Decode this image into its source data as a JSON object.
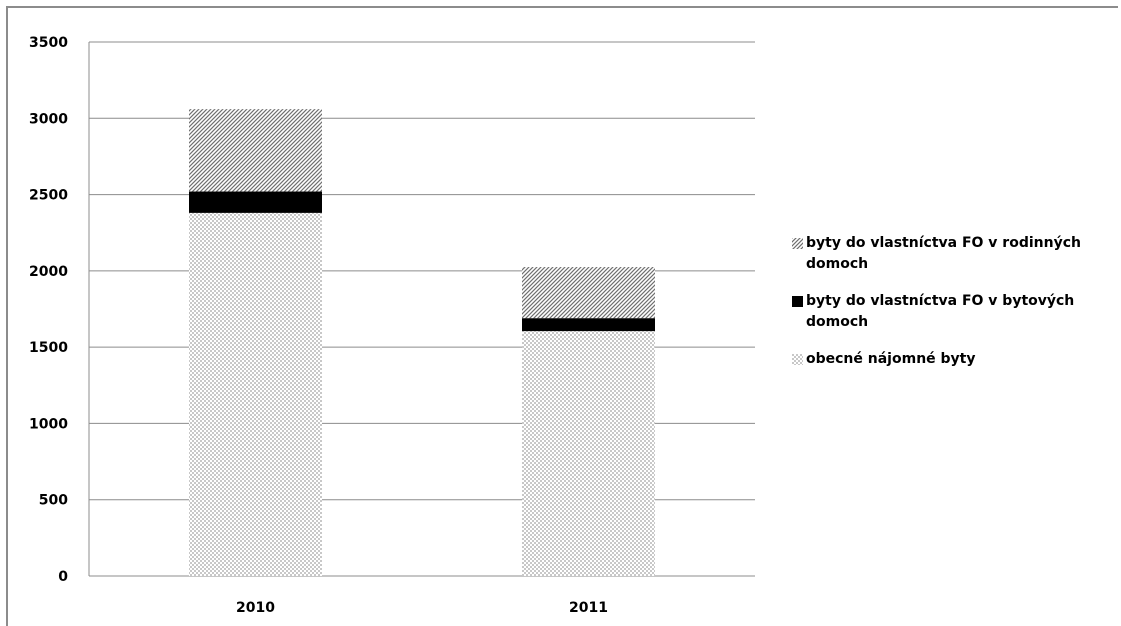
{
  "chart_data": {
    "type": "bar",
    "stacked": true,
    "categories": [
      "2010",
      "2011"
    ],
    "series": [
      {
        "name": "obecné nájomné byty",
        "values": [
          2380,
          1605
        ],
        "color": "#d9d9d9",
        "pattern": "dots"
      },
      {
        "name": "byty do vlastníctva FO v bytových domoch",
        "values": [
          140,
          85
        ],
        "color": "#000000",
        "pattern": "solid"
      },
      {
        "name": "byty do vlastníctva FO v rodinných domoch",
        "values": [
          540,
          335
        ],
        "color": "#7f7f7f",
        "pattern": "diagonal"
      }
    ],
    "ylim": [
      0,
      3500
    ],
    "yticks": [
      "0",
      "500",
      "1000",
      "1500",
      "2000",
      "2500",
      "3000",
      "3500"
    ],
    "grid": true,
    "legend_position": "right",
    "legend_order": [
      2,
      1,
      0
    ]
  }
}
